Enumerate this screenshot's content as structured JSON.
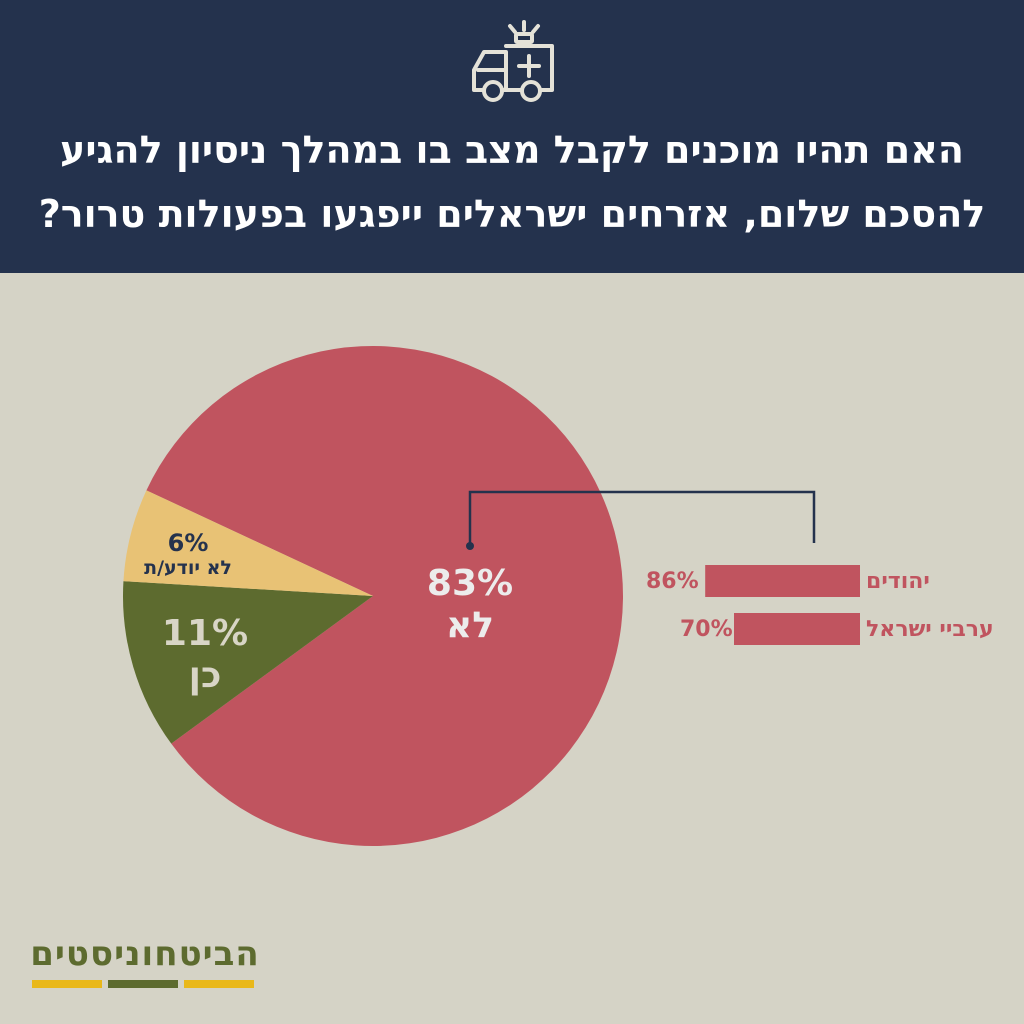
{
  "header": {
    "title": "האם תהיו מוכנים לקבל מצב בו במהלך ניסיון להגיע להסכם שלום, אזרחים ישראלים ייפגעו בפעולות טרור?",
    "icon": "ambulance-icon"
  },
  "colors": {
    "header_bg": "#24324d",
    "background": "#d5d3c6",
    "no": "#c0545f",
    "yes": "#5d6b2f",
    "dont_know": "#e8c275",
    "bracket": "#24324d"
  },
  "chart_data": [
    {
      "type": "pie",
      "slices": [
        {
          "name": "לא",
          "value": 83,
          "value_label": "83%",
          "color": "#c0545f"
        },
        {
          "name": "כן",
          "value": 11,
          "value_label": "11%",
          "color": "#5d6b2f"
        },
        {
          "name": "לא יודע/ת",
          "value": 6,
          "value_label": "6%",
          "color": "#e8c275"
        }
      ]
    },
    {
      "type": "bar",
      "orientation": "horizontal",
      "categories": [
        "יהודים",
        "ערביי ישראל"
      ],
      "values": [
        86,
        70
      ],
      "value_labels": [
        "86%",
        "70%"
      ],
      "color": "#c0545f"
    }
  ],
  "logo": {
    "text": "הביטחוניסטים",
    "stripe_colors": [
      "#e9b81a",
      "#5d6b2f",
      "#e9b81a"
    ]
  }
}
